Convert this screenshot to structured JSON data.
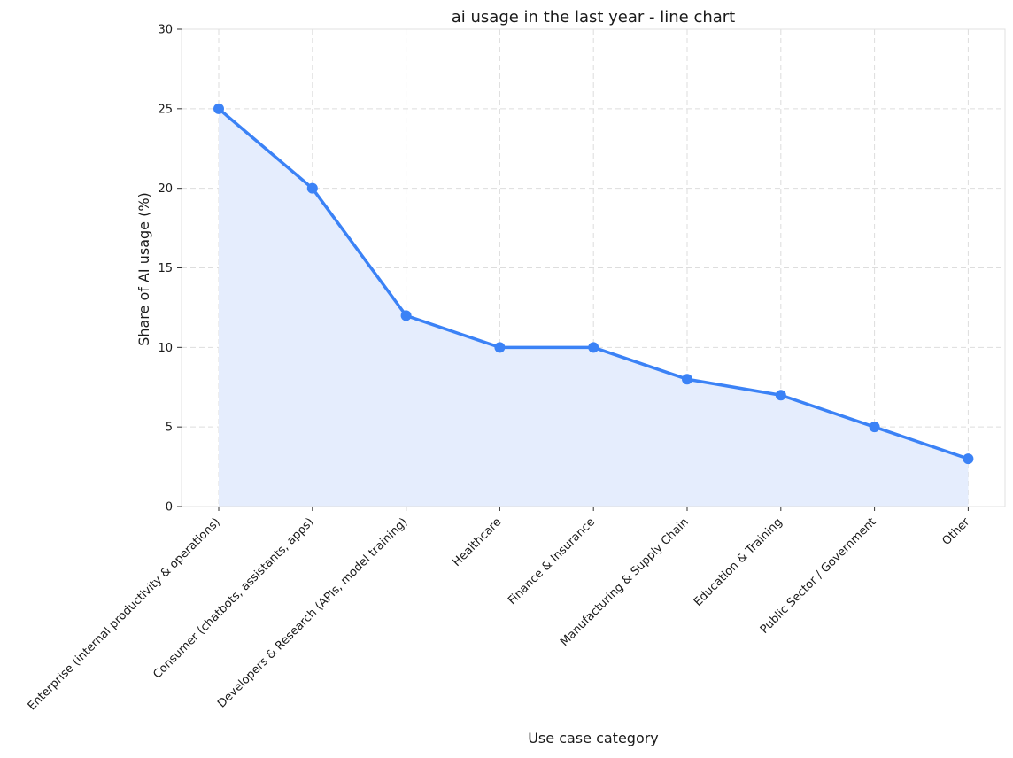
{
  "chart_data": {
    "type": "line",
    "title": "ai usage in the last year  - line chart",
    "xlabel": "Use case category",
    "ylabel": "Share of AI usage (%)",
    "categories": [
      "Enterprise (internal productivity & operations)",
      "Consumer (chatbots, assistants, apps)",
      "Developers & Research (APIs, model training)",
      "Healthcare",
      "Finance & Insurance",
      "Manufacturing & Supply Chain",
      "Education & Training",
      "Public Sector / Government",
      "Other"
    ],
    "values": [
      25,
      20,
      12,
      10,
      10,
      8,
      7,
      5,
      3
    ],
    "ylim": [
      0,
      30
    ],
    "yticks": [
      0,
      5,
      10,
      15,
      20,
      25,
      30
    ],
    "grid": true,
    "legend": "none",
    "area_fill": true,
    "colors": {
      "line": "#3b82f6",
      "fill": "#e5edfd",
      "grid": "#dddddd",
      "axis": "#e0e0e0"
    }
  }
}
